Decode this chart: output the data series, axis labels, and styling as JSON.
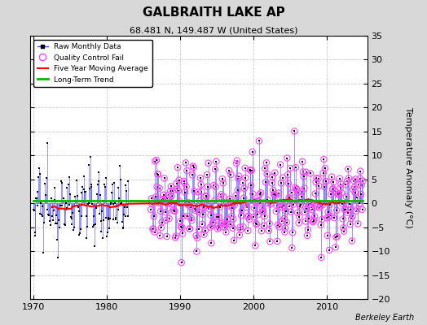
{
  "title": "GALBRAITH LAKE AP",
  "subtitle": "68.481 N, 149.487 W (United States)",
  "ylabel": "Temperature Anomaly (°C)",
  "credit": "Berkeley Earth",
  "xlim": [
    1969.5,
    2015.5
  ],
  "ylim": [
    -20,
    35
  ],
  "yticks": [
    -20,
    -15,
    -10,
    -5,
    0,
    5,
    10,
    15,
    20,
    25,
    30,
    35
  ],
  "xticks": [
    1970,
    1980,
    1990,
    2000,
    2010
  ],
  "bg_outer": "#d8d8d8",
  "bg_inner": "#ffffff",
  "grid_color": "#cccccc",
  "raw_line_color": "#4444ff",
  "raw_marker_color": "#000000",
  "qc_color": "#ff44ff",
  "ma_color": "#ff0000",
  "trend_color": "#00bb00",
  "seed": 12345
}
